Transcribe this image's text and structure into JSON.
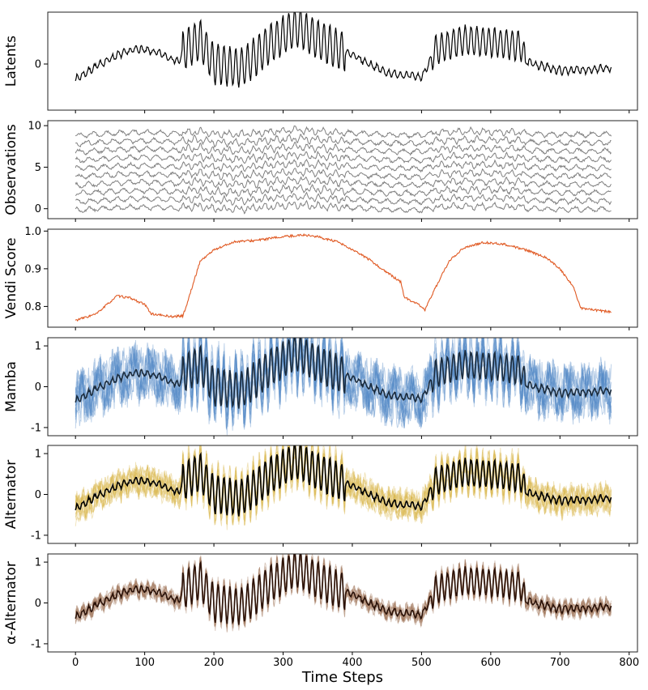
{
  "xaxis": {
    "label": "Time Steps",
    "lim": [
      -40,
      812
    ],
    "ticks": [
      0,
      100,
      200,
      300,
      400,
      500,
      600,
      700,
      800
    ]
  },
  "chart_data": [
    {
      "type": "line",
      "ylabel": "Latents",
      "ylim": [
        -1.05,
        1.18
      ],
      "yticks": [
        0
      ],
      "series": [
        {
          "role": "latent",
          "color": "#000000",
          "points": [
            [
              0,
              -0.35
            ],
            [
              30,
              -0.05
            ],
            [
              60,
              0.2
            ],
            [
              90,
              0.35
            ],
            [
              120,
              0.25
            ],
            [
              150,
              0.05
            ],
            [
              155,
              0.3
            ],
            [
              180,
              0.55
            ],
            [
              200,
              0.0
            ],
            [
              240,
              -0.1
            ],
            [
              280,
              0.45
            ],
            [
              320,
              0.85
            ],
            [
              350,
              0.55
            ],
            [
              370,
              0.4
            ],
            [
              400,
              0.2
            ],
            [
              450,
              -0.2
            ],
            [
              500,
              -0.3
            ],
            [
              520,
              0.3
            ],
            [
              560,
              0.55
            ],
            [
              600,
              0.5
            ],
            [
              645,
              0.4
            ],
            [
              650,
              0.05
            ],
            [
              700,
              -0.15
            ],
            [
              775,
              -0.1
            ]
          ]
        }
      ]
    },
    {
      "type": "line",
      "ylabel": "Observations",
      "ylim": [
        -1.2,
        10.6
      ],
      "yticks": [
        0,
        5,
        10
      ],
      "series": [
        {
          "role": "observations",
          "count": 10,
          "color": "#808080",
          "offsets": [
            0,
            1,
            2,
            3,
            4,
            5,
            6,
            7,
            8,
            9
          ]
        }
      ]
    },
    {
      "type": "line",
      "ylabel": "Vendi Score",
      "ylim": [
        0.745,
        1.005
      ],
      "yticks": [
        0.8,
        0.9,
        1.0
      ],
      "series": [
        {
          "role": "vendi",
          "color": "#e05a24",
          "points": [
            [
              0,
              0.763
            ],
            [
              30,
              0.78
            ],
            [
              60,
              0.828
            ],
            [
              80,
              0.822
            ],
            [
              100,
              0.805
            ],
            [
              110,
              0.78
            ],
            [
              140,
              0.773
            ],
            [
              155,
              0.775
            ],
            [
              160,
              0.8
            ],
            [
              180,
              0.92
            ],
            [
              200,
              0.95
            ],
            [
              230,
              0.972
            ],
            [
              260,
              0.975
            ],
            [
              300,
              0.985
            ],
            [
              330,
              0.99
            ],
            [
              350,
              0.985
            ],
            [
              380,
              0.97
            ],
            [
              420,
              0.93
            ],
            [
              450,
              0.89
            ],
            [
              470,
              0.865
            ],
            [
              475,
              0.825
            ],
            [
              500,
              0.8
            ],
            [
              505,
              0.79
            ],
            [
              520,
              0.85
            ],
            [
              540,
              0.92
            ],
            [
              560,
              0.955
            ],
            [
              590,
              0.97
            ],
            [
              620,
              0.965
            ],
            [
              650,
              0.95
            ],
            [
              680,
              0.93
            ],
            [
              700,
              0.9
            ],
            [
              720,
              0.85
            ],
            [
              730,
              0.795
            ],
            [
              775,
              0.785
            ]
          ]
        }
      ]
    },
    {
      "type": "line",
      "ylabel": "Mamba",
      "ylim": [
        -1.2,
        1.2
      ],
      "yticks": [
        -1,
        0,
        1
      ],
      "series": [
        {
          "role": "samples",
          "count": 12,
          "color": "#4f86c6",
          "spread": 0.75
        },
        {
          "role": "mean",
          "color": "#1a2b3d"
        }
      ]
    },
    {
      "type": "line",
      "ylabel": "Alternator",
      "ylim": [
        -1.2,
        1.2
      ],
      "yticks": [
        -1,
        0,
        1
      ],
      "series": [
        {
          "role": "samples",
          "count": 12,
          "color": "#d9b64a",
          "spread": 0.4
        },
        {
          "role": "mean",
          "color": "#000000"
        }
      ]
    },
    {
      "type": "line",
      "ylabel": "α-Alternator",
      "ylim": [
        -1.2,
        1.2
      ],
      "yticks": [
        -1,
        0,
        1
      ],
      "series": [
        {
          "role": "samples",
          "count": 12,
          "color": "#a0755a",
          "spread": 0.22
        },
        {
          "role": "mean",
          "color": "#2b1208"
        }
      ]
    }
  ]
}
